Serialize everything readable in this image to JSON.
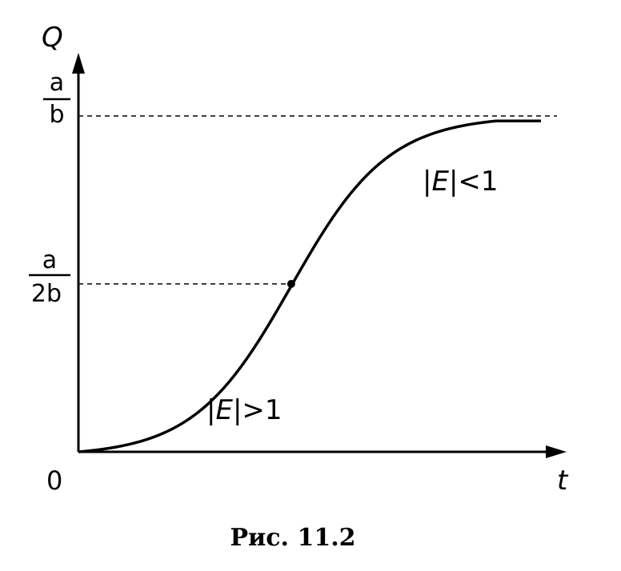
{
  "chart_data": {
    "type": "line",
    "title": "",
    "xlabel": "t",
    "ylabel": "Q",
    "origin_label": "0",
    "y_ticks": [
      {
        "value": 1.0,
        "numerator": "a",
        "denominator": "b"
      },
      {
        "value": 0.5,
        "numerator": "a",
        "denominator": "2b"
      }
    ],
    "xlim": [
      0,
      10
    ],
    "ylim": [
      0,
      1.0
    ],
    "series": [
      {
        "kind": "logistic",
        "capacity": 1.0,
        "initial": 0.0,
        "midpoint_t": 4.6,
        "rate": 0.95,
        "t_end": 10
      }
    ],
    "inflection_point": {
      "t": 4.6,
      "q": 0.5
    },
    "annotations": [
      {
        "text_prefix": "|",
        "text_var": "E",
        "text_suffix": "|>1"
      },
      {
        "text_prefix": "|",
        "text_var": "E",
        "text_suffix": "|<1"
      }
    ],
    "caption": "Рис. 11.2",
    "grid": false,
    "legend": "none"
  }
}
